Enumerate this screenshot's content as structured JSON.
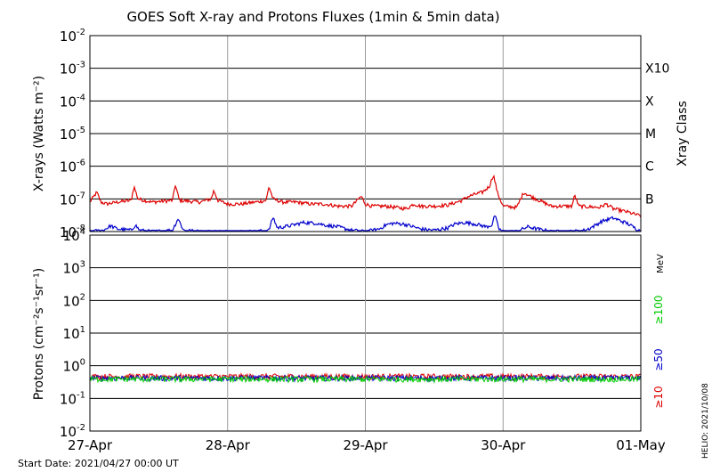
{
  "title": "GOES Soft X-ray and Protons Fluxes   (1min & 5min data)",
  "start_date": "Start Date: 2021/04/27 00:00 UT",
  "credit": "HELIO: 2021/10/08",
  "colors": {
    "xray_long": "#dd0000",
    "xray_short": "#0000cc",
    "p10": "#dd0000",
    "p50": "#0000cc",
    "p100": "#00cc00",
    "grid_major": "#000000",
    "grid_day": "#9a9a9a"
  },
  "chart_data": [
    {
      "type": "line",
      "panel": "xray",
      "ylabel": "X-rays (Watts m⁻²)",
      "yscale": "log",
      "ylim": [
        1e-08,
        0.01
      ],
      "ytick_exponents": [
        -8,
        -7,
        -6,
        -5,
        -4,
        -3,
        -2
      ],
      "right_axis_label": "Xray Class",
      "class_labels": [
        {
          "label": "B",
          "exponent": -7
        },
        {
          "label": "C",
          "exponent": -6
        },
        {
          "label": "M",
          "exponent": -5
        },
        {
          "label": "X",
          "exponent": -4
        },
        {
          "label": "X10",
          "exponent": -3
        }
      ],
      "x_ticks": [
        "27-Apr",
        "28-Apr",
        "29-Apr",
        "30-Apr",
        "01-May"
      ],
      "series": [
        {
          "key": "long",
          "color": "#dd0000",
          "x": [
            0.0,
            0.05,
            0.08,
            0.12,
            0.2,
            0.3,
            0.32,
            0.35,
            0.45,
            0.6,
            0.62,
            0.65,
            0.8,
            0.88,
            0.9,
            0.93,
            1.0,
            1.1,
            1.2,
            1.28,
            1.3,
            1.33,
            1.4,
            1.5,
            1.6,
            1.7,
            1.8,
            1.9,
            1.97,
            2.0,
            2.05,
            2.15,
            2.3,
            2.35,
            2.4,
            2.5,
            2.6,
            2.7,
            2.75,
            2.8,
            2.85,
            2.9,
            2.93,
            2.96,
            3.0,
            3.1,
            3.15,
            3.2,
            3.35,
            3.5,
            3.52,
            3.55,
            3.7,
            3.75,
            3.8,
            3.9,
            4.0
          ],
          "y": [
            8e-08,
            1.6e-07,
            8e-08,
            7e-08,
            8e-08,
            9e-08,
            2.4e-07,
            1e-07,
            8e-08,
            9e-08,
            2.7e-07,
            9e-08,
            8e-08,
            1e-07,
            1.8e-07,
            9e-08,
            7e-08,
            7e-08,
            8e-08,
            9e-08,
            2.4e-07,
            1e-07,
            8e-08,
            8e-08,
            7e-08,
            7e-08,
            6e-08,
            6e-08,
            1.2e-07,
            7e-08,
            6e-08,
            6e-08,
            5e-08,
            7e-08,
            6e-08,
            6e-08,
            6.5e-08,
            9e-08,
            1.2e-07,
            1.4e-07,
            1.6e-07,
            2.4e-07,
            5.5e-07,
            1.5e-07,
            6e-08,
            5.5e-08,
            1.6e-07,
            1.2e-07,
            6e-08,
            6e-08,
            1.3e-07,
            6e-08,
            5.5e-08,
            7e-08,
            5e-08,
            4e-08,
            3e-08
          ]
        },
        {
          "key": "short",
          "color": "#0000cc",
          "x": [
            0.0,
            0.1,
            0.15,
            0.2,
            0.3,
            0.33,
            0.36,
            0.45,
            0.6,
            0.64,
            0.68,
            0.8,
            1.0,
            1.2,
            1.3,
            1.33,
            1.36,
            1.45,
            1.55,
            1.65,
            1.7,
            1.8,
            1.9,
            2.0,
            2.1,
            2.15,
            2.2,
            2.28,
            2.35,
            2.4,
            2.5,
            2.6,
            2.65,
            2.72,
            2.8,
            2.88,
            2.92,
            2.94,
            2.97,
            3.0,
            3.1,
            3.18,
            3.25,
            3.35,
            3.5,
            3.6,
            3.65,
            3.72,
            3.8,
            3.9,
            4.0
          ],
          "y": [
            1e-08,
            1.1e-08,
            1.5e-08,
            1.2e-08,
            1.1e-08,
            1.6e-08,
            1.1e-08,
            1e-08,
            1.1e-08,
            2.5e-08,
            1.1e-08,
            1e-08,
            1e-08,
            1e-08,
            1.1e-08,
            2.8e-08,
            1.3e-08,
            1.5e-08,
            1.9e-08,
            1.8e-08,
            1.6e-08,
            1.4e-08,
            1.1e-08,
            1e-08,
            1.2e-08,
            1.6e-08,
            1.8e-08,
            1.7e-08,
            1.4e-08,
            1.2e-08,
            1.1e-08,
            1.3e-08,
            1.7e-08,
            1.9e-08,
            1.7e-08,
            1.4e-08,
            1.6e-08,
            3.2e-08,
            1.2e-08,
            1e-08,
            1e-08,
            1.4e-08,
            1.2e-08,
            1e-08,
            1e-08,
            1.1e-08,
            1.4e-08,
            2.1e-08,
            2.6e-08,
            1.8e-08,
            1e-08
          ]
        }
      ]
    },
    {
      "type": "line",
      "panel": "protons",
      "ylabel": "Protons (cm⁻²s⁻¹sr⁻¹)",
      "yscale": "log",
      "ylim": [
        0.01,
        10000
      ],
      "ytick_exponents": [
        -2,
        -1,
        0,
        1,
        2,
        3,
        4
      ],
      "threshold": 10,
      "right_axis_unit": "MeV",
      "x_ticks": [
        "27-Apr",
        "28-Apr",
        "29-Apr",
        "30-Apr",
        "01-May"
      ],
      "series": [
        {
          "key": "p10",
          "name": "≥10",
          "color": "#dd0000",
          "level": 0.47
        },
        {
          "key": "p50",
          "name": "≥50",
          "color": "#0000cc",
          "level": 0.42
        },
        {
          "key": "p100",
          "name": "≥100",
          "color": "#00cc00",
          "level": 0.39
        }
      ]
    }
  ]
}
